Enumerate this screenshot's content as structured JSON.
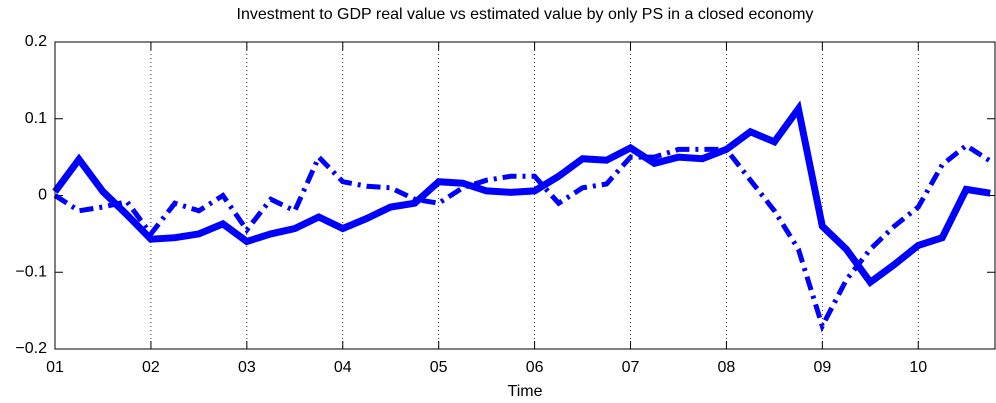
{
  "chart_data": {
    "type": "line",
    "title": "Investment to GDP real value vs estimated value by only PS in a closed economy",
    "x_label": "Time",
    "x": [
      1,
      1.25,
      1.5,
      1.75,
      2,
      2.25,
      2.5,
      2.75,
      3,
      3.25,
      3.5,
      3.75,
      4,
      4.25,
      4.5,
      4.75,
      5,
      5.25,
      5.5,
      5.75,
      6,
      6.25,
      6.5,
      6.75,
      7,
      7.25,
      7.5,
      7.75,
      8,
      8.25,
      8.5,
      8.75,
      9,
      9.25,
      9.5,
      9.75,
      10,
      10.25,
      10.5,
      10.75
    ],
    "series": [
      {
        "color": "#0000ff",
        "linestyle": "dashdot",
        "values": [
          0.0,
          -0.02,
          -0.015,
          -0.008,
          -0.05,
          -0.01,
          -0.02,
          0.0,
          -0.045,
          -0.005,
          -0.02,
          0.05,
          0.018,
          0.012,
          0.01,
          -0.005,
          -0.01,
          0.01,
          0.02,
          0.025,
          0.025,
          -0.01,
          0.01,
          0.015,
          0.05,
          0.05,
          0.06,
          0.06,
          0.06,
          0.02,
          -0.02,
          -0.07,
          -0.17,
          -0.11,
          -0.07,
          -0.04,
          -0.015,
          0.04,
          0.065,
          0.045
        ]
      },
      {
        "color": "#0000ff",
        "linestyle": "solid",
        "values": [
          0.005,
          0.047,
          0.005,
          -0.025,
          -0.057,
          -0.055,
          -0.05,
          -0.037,
          -0.06,
          -0.05,
          -0.043,
          -0.028,
          -0.043,
          -0.03,
          -0.015,
          -0.01,
          0.018,
          0.016,
          0.006,
          0.004,
          0.006,
          0.025,
          0.048,
          0.046,
          0.062,
          0.042,
          0.05,
          0.048,
          0.06,
          0.083,
          0.07,
          0.113,
          -0.04,
          -0.07,
          -0.113,
          -0.09,
          -0.065,
          -0.055,
          0.008,
          0.003
        ]
      }
    ],
    "xlim": [
      1,
      10.8
    ],
    "xticks": [
      {
        "value": 1,
        "label": "01"
      },
      {
        "value": 2,
        "label": "02"
      },
      {
        "value": 3,
        "label": "03"
      },
      {
        "value": 4,
        "label": "04"
      },
      {
        "value": 5,
        "label": "05"
      },
      {
        "value": 6,
        "label": "06"
      },
      {
        "value": 7,
        "label": "07"
      },
      {
        "value": 8,
        "label": "08"
      },
      {
        "value": 9,
        "label": "09"
      },
      {
        "value": 10,
        "label": "10"
      }
    ],
    "ylim": [
      -0.2,
      0.2
    ],
    "yticks": [
      {
        "value": -0.2,
        "label": "−0.2"
      },
      {
        "value": -0.1,
        "label": "−0.1"
      },
      0,
      0.1,
      0.2
    ],
    "xgrid": true
  }
}
